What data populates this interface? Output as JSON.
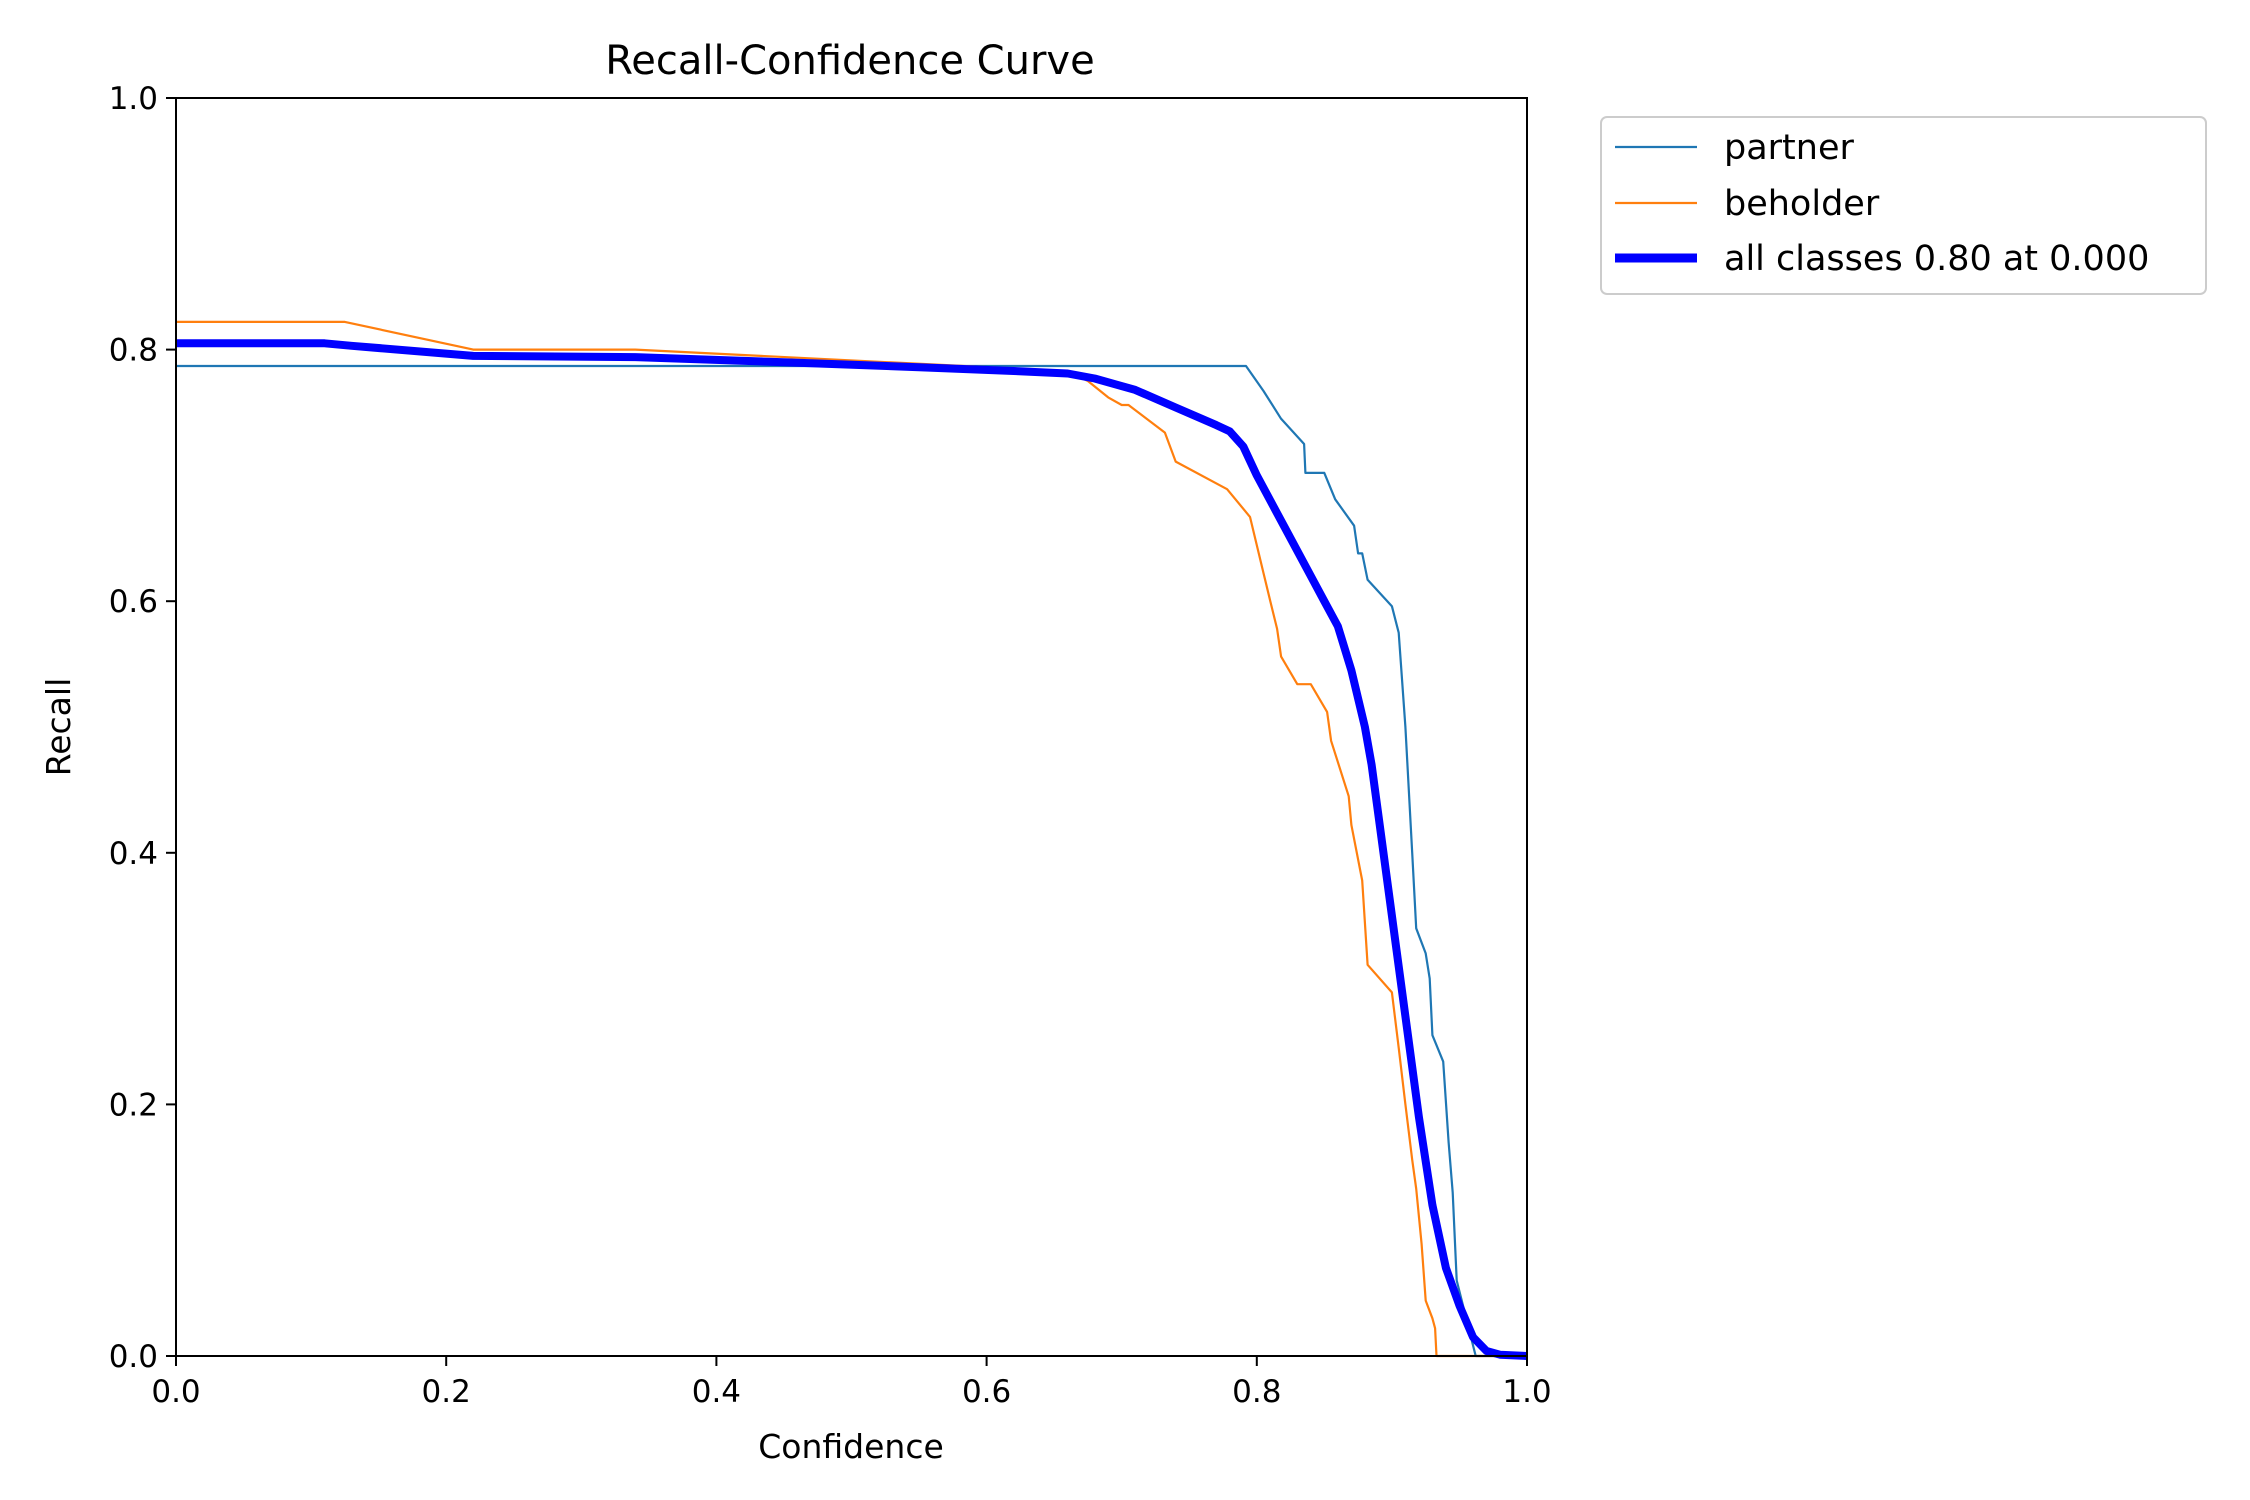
{
  "chart_data": {
    "type": "line",
    "title": "Recall-Confidence Curve",
    "xlabel": "Confidence",
    "ylabel": "Recall",
    "xlim": [
      0,
      1
    ],
    "ylim": [
      0,
      1
    ],
    "xticks": [
      "0.0",
      "0.2",
      "0.4",
      "0.6",
      "0.8",
      "1.0"
    ],
    "yticks": [
      "0.0",
      "0.2",
      "0.4",
      "0.6",
      "0.8",
      "1.0"
    ],
    "grid": false,
    "legend_position": "outside-top-right",
    "series": [
      {
        "name": "partner",
        "color": "#1f77b4",
        "width": "thin",
        "points": [
          [
            0.0,
            0.787
          ],
          [
            0.792,
            0.787
          ],
          [
            0.805,
            0.767
          ],
          [
            0.818,
            0.745
          ],
          [
            0.835,
            0.725
          ],
          [
            0.836,
            0.702
          ],
          [
            0.85,
            0.702
          ],
          [
            0.858,
            0.681
          ],
          [
            0.872,
            0.66
          ],
          [
            0.875,
            0.638
          ],
          [
            0.878,
            0.638
          ],
          [
            0.882,
            0.617
          ],
          [
            0.9,
            0.596
          ],
          [
            0.905,
            0.575
          ],
          [
            0.91,
            0.5
          ],
          [
            0.915,
            0.4
          ],
          [
            0.918,
            0.34
          ],
          [
            0.925,
            0.32
          ],
          [
            0.928,
            0.3
          ],
          [
            0.93,
            0.255
          ],
          [
            0.938,
            0.234
          ],
          [
            0.942,
            0.17
          ],
          [
            0.945,
            0.13
          ],
          [
            0.948,
            0.06
          ],
          [
            0.955,
            0.03
          ],
          [
            0.962,
            0.0
          ],
          [
            1.0,
            0.0
          ]
        ]
      },
      {
        "name": "beholder",
        "color": "#ff7f0e",
        "width": "thin",
        "points": [
          [
            0.0,
            0.822
          ],
          [
            0.125,
            0.822
          ],
          [
            0.22,
            0.8
          ],
          [
            0.34,
            0.8
          ],
          [
            0.62,
            0.785
          ],
          [
            0.665,
            0.78
          ],
          [
            0.675,
            0.775
          ],
          [
            0.69,
            0.762
          ],
          [
            0.7,
            0.756
          ],
          [
            0.705,
            0.756
          ],
          [
            0.732,
            0.734
          ],
          [
            0.74,
            0.711
          ],
          [
            0.778,
            0.689
          ],
          [
            0.795,
            0.667
          ],
          [
            0.805,
            0.622
          ],
          [
            0.81,
            0.6
          ],
          [
            0.815,
            0.578
          ],
          [
            0.818,
            0.556
          ],
          [
            0.83,
            0.534
          ],
          [
            0.84,
            0.534
          ],
          [
            0.852,
            0.512
          ],
          [
            0.855,
            0.489
          ],
          [
            0.868,
            0.445
          ],
          [
            0.87,
            0.422
          ],
          [
            0.878,
            0.378
          ],
          [
            0.882,
            0.311
          ],
          [
            0.9,
            0.289
          ],
          [
            0.905,
            0.245
          ],
          [
            0.91,
            0.2
          ],
          [
            0.915,
            0.156
          ],
          [
            0.918,
            0.133
          ],
          [
            0.922,
            0.089
          ],
          [
            0.925,
            0.044
          ],
          [
            0.93,
            0.03
          ],
          [
            0.932,
            0.022
          ],
          [
            0.933,
            0.0
          ],
          [
            1.0,
            0.0
          ]
        ]
      },
      {
        "name": "all classes 0.80 at 0.000",
        "color": "#0000ff",
        "width": "thick",
        "points": [
          [
            0.0,
            0.805
          ],
          [
            0.11,
            0.805
          ],
          [
            0.13,
            0.803
          ],
          [
            0.22,
            0.795
          ],
          [
            0.34,
            0.794
          ],
          [
            0.45,
            0.79
          ],
          [
            0.55,
            0.786
          ],
          [
            0.62,
            0.783
          ],
          [
            0.66,
            0.781
          ],
          [
            0.68,
            0.777
          ],
          [
            0.71,
            0.768
          ],
          [
            0.74,
            0.754
          ],
          [
            0.77,
            0.74
          ],
          [
            0.78,
            0.735
          ],
          [
            0.79,
            0.723
          ],
          [
            0.8,
            0.7
          ],
          [
            0.82,
            0.66
          ],
          [
            0.84,
            0.62
          ],
          [
            0.85,
            0.6
          ],
          [
            0.86,
            0.58
          ],
          [
            0.87,
            0.545
          ],
          [
            0.88,
            0.5
          ],
          [
            0.885,
            0.47
          ],
          [
            0.89,
            0.43
          ],
          [
            0.9,
            0.35
          ],
          [
            0.91,
            0.27
          ],
          [
            0.92,
            0.19
          ],
          [
            0.93,
            0.12
          ],
          [
            0.94,
            0.07
          ],
          [
            0.95,
            0.04
          ],
          [
            0.96,
            0.015
          ],
          [
            0.97,
            0.004
          ],
          [
            0.98,
            0.001
          ],
          [
            1.0,
            0.0
          ]
        ]
      }
    ]
  }
}
